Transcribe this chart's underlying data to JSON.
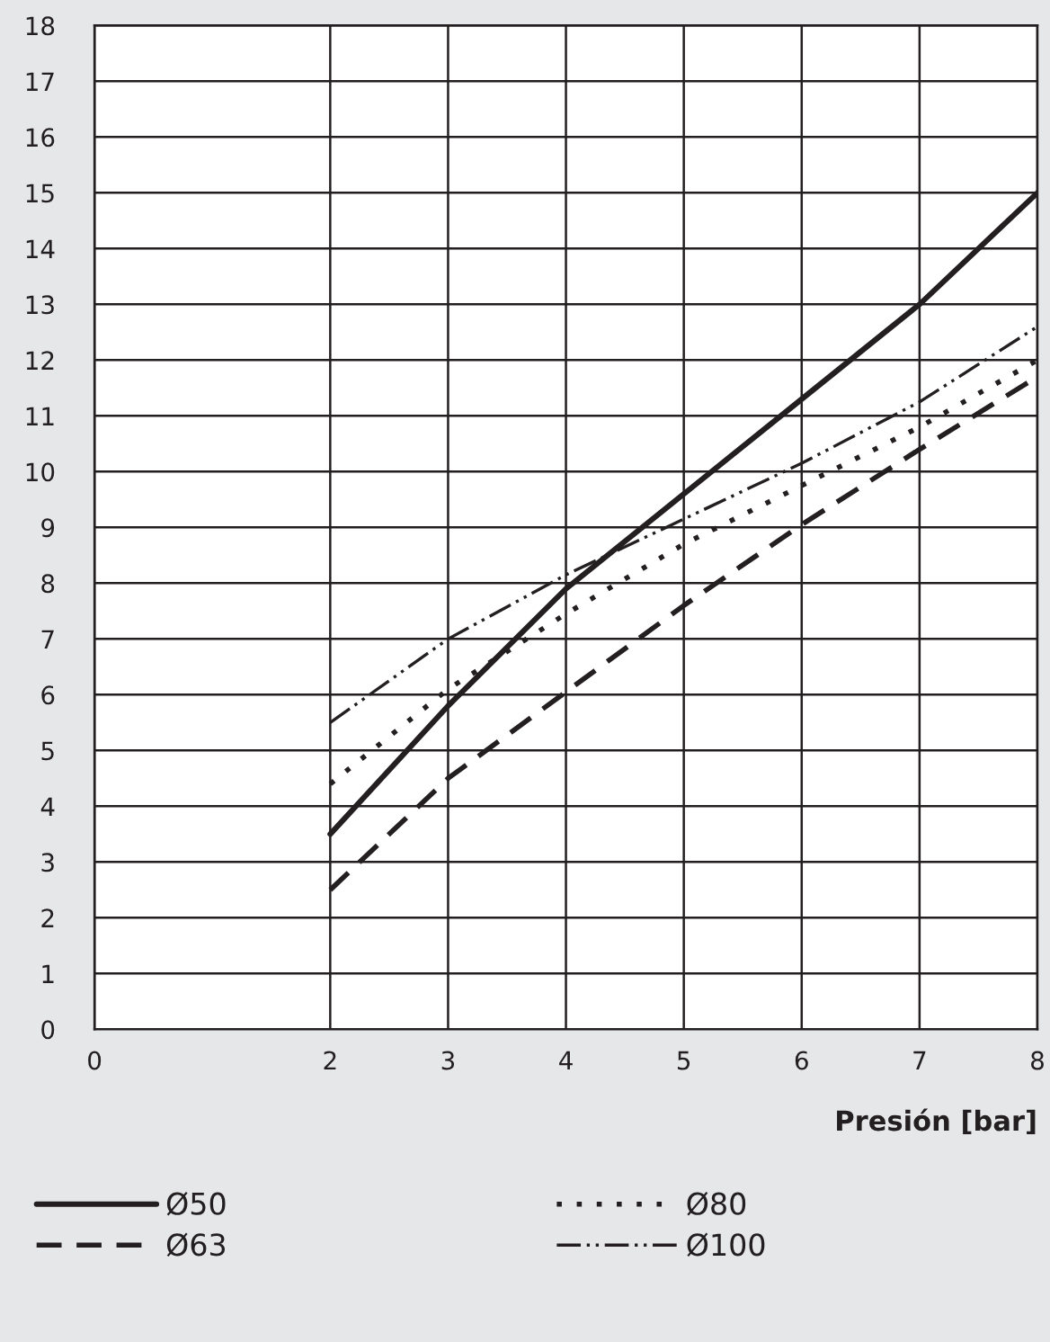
{
  "chart_data": {
    "type": "line",
    "xlabel": "Presión [bar]",
    "x": [
      2,
      3,
      4,
      5,
      6,
      7,
      8
    ],
    "xlim": [
      0,
      8
    ],
    "xticks": [
      0,
      2,
      3,
      4,
      5,
      6,
      7,
      8
    ],
    "ylim": [
      0,
      18
    ],
    "yticks": [
      0,
      1,
      2,
      3,
      4,
      5,
      6,
      7,
      8,
      9,
      10,
      11,
      12,
      13,
      14,
      15,
      16,
      17,
      18
    ],
    "grid": true,
    "legend": "bottom",
    "marker": "none",
    "series": [
      {
        "name": "Ø50",
        "color": "#231f20",
        "line_style": "solid",
        "values": [
          3.5,
          5.8,
          7.9,
          9.6,
          11.3,
          13.0,
          15.0
        ]
      },
      {
        "name": "Ø63",
        "color": "#231f20",
        "line_style": "dashed",
        "values": [
          2.5,
          4.5,
          6.05,
          7.6,
          9.05,
          10.4,
          11.7
        ]
      },
      {
        "name": "Ø80",
        "color": "#231f20",
        "line_style": "dotted",
        "values": [
          4.4,
          6.1,
          7.45,
          8.7,
          9.75,
          10.8,
          12.0
        ]
      },
      {
        "name": "Ø100",
        "color": "#231f20",
        "line_style": "dashdotdot",
        "values": [
          5.5,
          7.0,
          8.15,
          9.15,
          10.15,
          11.25,
          12.6
        ]
      }
    ]
  }
}
